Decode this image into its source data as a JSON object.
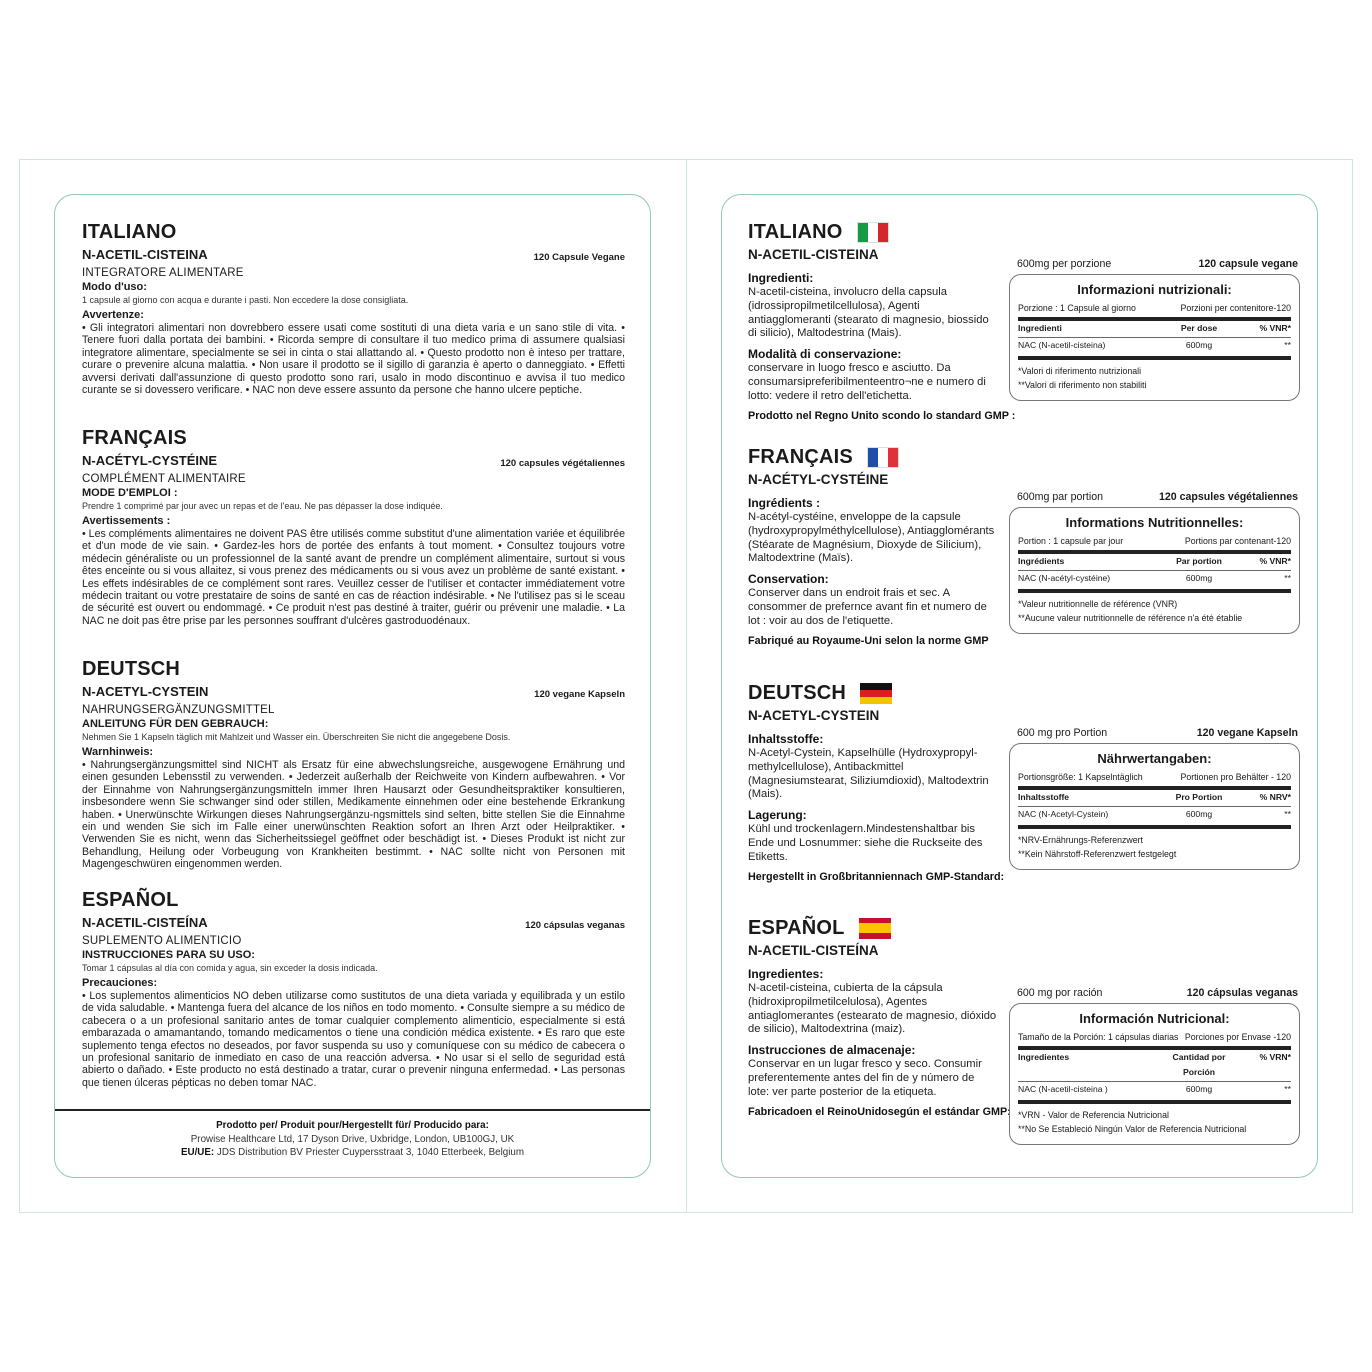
{
  "left": {
    "sections": [
      {
        "heading": "ITALIANO",
        "product": "N-ACETIL-CISTEINA",
        "capsules": "120 Capsule Vegane",
        "category": "INTEGRATORE ALIMENTARE",
        "usage_title": "Modo d'uso:",
        "usage_text": "1 capsule al giorno con acqua e durante i pasti. Non eccedere la dose consigliata.",
        "warnings_title": "Avvertenze:",
        "warnings_text": "• Gli integratori alimentari non dovrebbero essere usati come sostituti di una dieta varia e un sano stile di vita. • Tenere fuori dalla portata dei bambini. • Ricorda sempre di consultare il tuo medico prima di assumere qualsiasi integratore alimentare, specialmente se sei in cinta o stai allattando al. • Questo prodotto non è inteso per trattare, curare o prevenire alcuna malattia. • Non usare il prodotto se il sigillo di garanzia è aperto o danneggiato. • Effetti avversi derivati dall'assunzione di questo prodotto sono rari, usalo in modo discontinuo e avvisa il tuo medico curante se si dovessero verificare. • NAC non deve essere assunto da persone che hanno ulcere peptiche."
      },
      {
        "heading": "FRANÇAIS",
        "product": "N-ACÉTYL-CYSTÉINE",
        "capsules": "120 capsules végétaliennes",
        "category": "COMPLÉMENT ALIMENTAIRE",
        "usage_title": "MODE D'EMPLOI :",
        "usage_text": "Prendre 1 comprimé par jour avec un repas et de l'eau. Ne pas dépasser la dose indiquée.",
        "warnings_title": "Avertissements :",
        "warnings_text": "• Les compléments alimentaires ne doivent PAS être utilisés comme substitut d'une alimentation variée et équilibrée et d'un mode de vie sain. • Gardez-les hors de portée des enfants à tout moment. • Consultez toujours votre médecin généraliste ou un professionnel de la santé avant de prendre un complément alimentaire, surtout si vous êtes enceinte ou si vous allaitez, si vous prenez des médicaments ou si vous avez un problème de santé existant. • Les effets indésirables de ce complément sont rares. Veuillez cesser de l'utiliser et contacter immédiatement votre médecin traitant ou votre prestataire de soins de santé en cas de réaction indésirable. • Ne l'utilisez pas si le sceau de sécurité est ouvert ou endommagé. • Ce produit n'est pas destiné à traiter, guérir ou prévenir une maladie. • La NAC ne doit pas être prise par les personnes souffrant d'ulcères gastroduodénaux."
      },
      {
        "heading": "DEUTSCH",
        "product": "N-ACETYL-CYSTEIN",
        "capsules": "120 vegane Kapseln",
        "category": "NAHRUNGSERGÄNZUNGSMITTEL",
        "usage_title": "ANLEITUNG FÜR DEN GEBRAUCH:",
        "usage_text": "Nehmen Sie 1 Kapseln täglich mit Mahlzeit und Wasser ein. Überschreiten Sie nicht die angegebene Dosis.",
        "warnings_title": "Warnhinweis:",
        "warnings_text": "• Nahrungsergänzungsmittel sind NICHT als Ersatz für eine abwechslungsreiche, ausgewogene Ernährung und einen gesunden Lebensstil zu verwenden. • Jederzeit außerhalb der Reichweite von Kindern aufbewahren. • Vor der Einnahme von Nahrungsergänzungsmitteln immer Ihren Hausarzt oder Gesundheitspraktiker konsultieren, insbesondere wenn Sie schwanger sind oder stillen, Medikamente einnehmen oder eine bestehende Erkrankung haben. • Unerwünschte Wirkungen dieses Nahrungsergänzu-ngsmittels sind selten, bitte stellen Sie die Einnahme ein und wenden Sie sich im Falle einer unerwünschten Reaktion sofort an Ihren Arzt oder Heilpraktiker. • Verwenden Sie es nicht, wenn das Sicherheitssiegel geöffnet oder beschädigt ist. • Dieses Produkt ist nicht zur Behandlung, Heilung oder Vorbeugung von Krankheiten bestimmt. • NAC sollte nicht von Personen mit Magengeschwüren eingenommen werden."
      },
      {
        "heading": "ESPAÑOL",
        "product": "N-ACETIL-CISTEÍNA",
        "capsules": "120 cápsulas veganas",
        "category": "SUPLEMENTO ALIMENTICIO",
        "usage_title": "INSTRUCCIONES PARA SU USO:",
        "usage_text": "Tomar 1 cápsulas al día con comida y agua, sin exceder la dosis indicada.",
        "warnings_title": "Precauciones:",
        "warnings_text": "• Los suplementos alimenticios NO deben utilizarse como sustitutos de una dieta variada y equilibrada y un estilo de vida saludable. • Mantenga fuera del alcance de los niños en todo momento. • Consulte siempre a su médico de cabecera o a un profesional sanitario antes de tomar cualquier complemento alimenticio, especialmente si está embarazada o amamantando, tomando medicamentos o tiene una condición médica existente. • Es raro que este suplemento tenga efectos no deseados, por favor suspenda su uso y comuníquese con su médico de cabecera o un profesional sanitario de inmediato en caso de una reacción adversa. • No usar si el sello de seguridad está abierto o dañado. • Este producto no está destinado a tratar, curar o prevenir ninguna enfermedad. • Las personas que tienen úlceras pépticas no deben tomar NAC."
      }
    ],
    "footer": {
      "title": "Prodotto per/ Produit pour/Hergestellt für/ Producido para:",
      "address": "Prowise Healthcare Ltd, 17 Dyson Drive, Uxbridge, London, UB100GJ, UK",
      "eu_label": "EU/UE:",
      "eu_address": "JDS Distribution BV Priester Cuypersstraat 3, 1040 Etterbeek, Belgium"
    }
  },
  "right": {
    "sections": [
      {
        "heading": "ITALIANO",
        "flag": {
          "orientation": "vertical",
          "colors": [
            "#159a45",
            "#ffffff",
            "#d3262f"
          ]
        },
        "product": "N-ACETIL-CISTEINA",
        "ingredients_title": "Ingredienti:",
        "ingredients_text": "N-acetil-cisteina, involucro della capsula (idrossipropilmetilcellulosa), Agenti antiagglomeranti (stearato di magnesio, biossido di silicio), Maltodestrina (Mais).",
        "storage_title": "Modalità di conservazione:",
        "storage_text": "conservare in luogo fresco e asciutto. Da consumarsipreferibilmenteentro¬ne e numero di lotto: vedere il retro dell'etichetta.",
        "made_in": "Prodotto nel Regno Unito scondo lo standard GMP :",
        "per_serving": "600mg per porzione",
        "capsules": "120 capsule vegane",
        "table": {
          "title": "Informazioni nutrizionali:",
          "portion": "Porzione : 1 Capsule al giorno",
          "portions_per": "Porzioni per contenitore-120",
          "col1": "Ingredienti",
          "col2": "Per dose",
          "col3": "% VNR*",
          "row_name": "NAC (N-acetil-cisteina)",
          "row_amount": "600mg",
          "row_vnr": "**",
          "note1": "*Valori di riferimento nutrizionali",
          "note2": "**Valori di riferimento non stabiliti"
        }
      },
      {
        "heading": "FRANÇAIS",
        "flag": {
          "orientation": "vertical",
          "colors": [
            "#1f4fa8",
            "#ffffff",
            "#e0303a"
          ]
        },
        "product": "N-ACÉTYL-CYSTÉINE",
        "ingredients_title": "Ingrédients :",
        "ingredients_text": "N-acétyl-cystéine, enveloppe de la capsule (hydroxypropylméthylcellulose), Antiagglomérants (Stéarate de Magnésium, Dioxyde de Silicium), Maltodextrine (Maïs).",
        "storage_title": "Conservation:",
        "storage_text": "Conserver dans un endroit frais et sec. A consommer de prefernce avant fin et numero de lot : voir au dos de l'etiquette.",
        "made_in": "Fabriqué au Royaume-Uni selon la norme GMP",
        "per_serving": "600mg par portion",
        "capsules": "120 capsules végétaliennes",
        "table": {
          "title": "Informations Nutritionnelles:",
          "portion": "Portion : 1 capsule par jour",
          "portions_per": "Portions par contenant-120",
          "col1": "Ingrédients",
          "col2": "Par portion",
          "col3": "% VNR*",
          "row_name": "NAC (N-acétyl-cystéine)",
          "row_amount": "600mg",
          "row_vnr": "**",
          "note1": "*Valeur nutritionnelle de référence (VNR)",
          "note2": "**Aucune valeur nutritionnelle de référence n'a été établie"
        }
      },
      {
        "heading": "DEUTSCH",
        "flag": {
          "orientation": "horizontal",
          "colors": [
            "#111111",
            "#dd1e1e",
            "#f5c400"
          ]
        },
        "product": "N-ACETYL-CYSTEIN",
        "ingredients_title": "Inhaltsstoffe:",
        "ingredients_text": "N-Acetyl-Cystein, Kapselhülle (Hydroxypropyl-methylcellulose), Antibackmittel (Magnesiumstearat, Siliziumdioxid), Maltodextrin (Mais).",
        "storage_title": "Lagerung:",
        "storage_text": "Kühl und trockenlagern.Mindestenshaltbar bis Ende und Losnummer: siehe die Ruckseite des Etiketts.",
        "made_in": "Hergestellt in Großbritanniennach GMP-Standard:",
        "per_serving": "600 mg pro Portion",
        "capsules": "120 vegane Kapseln",
        "table": {
          "title": "Nährwertangaben:",
          "portion": "Portionsgröße: 1 Kapselntäglich",
          "portions_per": "Portionen pro Behälter - 120",
          "col1": "Inhaltsstoffe",
          "col2": "Pro Portion",
          "col3": "% NRV*",
          "row_name": "NAC (N-Acetyl-Cystein)",
          "row_amount": "600mg",
          "row_vnr": "**",
          "note1": "*NRV-Ernährungs-Referenzwert",
          "note2": "**Kein Nährstoff-Referenzwert festgelegt"
        }
      },
      {
        "heading": "ESPAÑOL",
        "flag": {
          "orientation": "spain",
          "colors": [
            "#c8102e",
            "#ffc400",
            "#c8102e"
          ]
        },
        "product": "N-ACETIL-CISTEÍNA",
        "ingredients_title": "Ingredientes:",
        "ingredients_text": "N-acetil-cisteina, cubierta de la cápsula (hidroxipropilmetilcelulosa), Agentes antiaglomerantes (estearato de magnesio, dióxido de silicio), Maltodextrina (maiz).",
        "storage_title": "Instrucciones de almacenaje:",
        "storage_text": "Conservar en un lugar fresco y seco. Consumir preferentemente antes del fin de y número de lote: ver parte posterior de la etiqueta.",
        "made_in": "Fabricadoen el ReinoUnidosegún el estándar GMP:",
        "per_serving": "600 mg por ración",
        "capsules": "120 cápsulas veganas",
        "table": {
          "title": "Información Nutricional:",
          "portion": "Tamaño de la Porción: 1 cápsulas diarias",
          "portions_per": "Porciones por Envase -120",
          "col1": "Ingredientes",
          "col2": "Cantidad por Porción",
          "col3": "% VRN*",
          "row_name": "NAC (N-acetil-cisteina )",
          "row_amount": "600mg",
          "row_vnr": "**",
          "note1": "*VRN - Valor de Referencia Nutricional",
          "note2": "**No Se Estableció Ningún Valor de Referencia Nutricional"
        }
      }
    ]
  },
  "colors": {
    "panel_border": "#93c7b6",
    "frame_border": "#cfe3df",
    "text": "#1a1a1a"
  }
}
